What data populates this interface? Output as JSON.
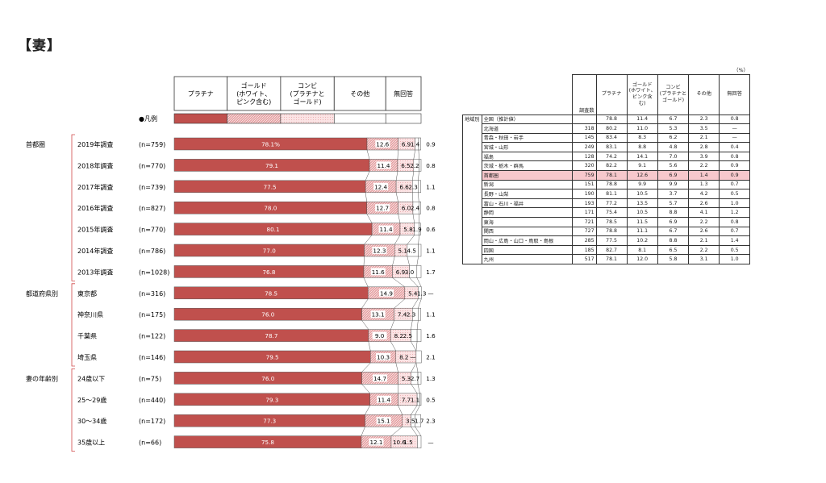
{
  "page": {
    "title": "【妻】"
  },
  "chart_data": {
    "type": "bar",
    "stacked": true,
    "orientation": "horizontal",
    "xlim": [
      0,
      100
    ],
    "legend": {
      "items": [
        "プラチナ",
        "ゴールド\n(ホワイト、\nピンク含む)",
        "コンビ\n(プラチナと\nゴールド)",
        "その他",
        "無回答"
      ],
      "marker_label": "●凡例"
    },
    "series_colors": [
      "#c0504d",
      "#e6a3a5",
      "#fbe3e4",
      "#ffffff",
      "#ffffff"
    ],
    "groups": [
      {
        "label": "首都圏",
        "start": 0,
        "end": 6
      },
      {
        "label": "都道府県別",
        "start": 7,
        "end": 10
      },
      {
        "label": "妻の年齢別",
        "start": 11,
        "end": 14
      }
    ],
    "rows": [
      {
        "label": "2019年調査",
        "n": "(n=759)",
        "values": [
          78.1,
          12.6,
          6.9,
          1.4,
          0.9
        ],
        "labels": [
          "78.1%",
          "12.6",
          "6.9",
          "1.4",
          "0.9"
        ]
      },
      {
        "label": "2018年調査",
        "n": "(n=770)",
        "values": [
          79.1,
          11.4,
          6.5,
          2.2,
          0.8
        ],
        "labels": [
          "79.1",
          "11.4",
          "6.5",
          "2.2",
          "0.8"
        ]
      },
      {
        "label": "2017年調査",
        "n": "(n=739)",
        "values": [
          77.5,
          12.4,
          6.6,
          2.3,
          1.1
        ],
        "labels": [
          "77.5",
          "12.4",
          "6.6",
          "2.3",
          "1.1"
        ]
      },
      {
        "label": "2016年調査",
        "n": "(n=827)",
        "values": [
          78.0,
          12.7,
          6.0,
          2.4,
          0.8
        ],
        "labels": [
          "78.0",
          "12.7",
          "6.0",
          "2.4",
          "0.8"
        ]
      },
      {
        "label": "2015年調査",
        "n": "(n=770)",
        "values": [
          80.1,
          11.4,
          5.8,
          1.9,
          0.6
        ],
        "labels": [
          "80.1",
          "11.4",
          "5.8",
          "1.9",
          "0.6"
        ]
      },
      {
        "label": "2014年調査",
        "n": "(n=786)",
        "values": [
          77.0,
          12.3,
          5.1,
          4.5,
          1.1
        ],
        "labels": [
          "77.0",
          "12.3",
          "5.1",
          "4.5",
          "1.1"
        ]
      },
      {
        "label": "2013年調査",
        "n": "(n=1028)",
        "values": [
          76.8,
          11.6,
          6.9,
          3.0,
          1.7
        ],
        "labels": [
          "76.8",
          "11.6",
          "6.9",
          "3.0",
          "1.7"
        ]
      },
      {
        "label": "東京都",
        "n": "(n=316)",
        "values": [
          78.5,
          14.9,
          5.4,
          1.3,
          0.0
        ],
        "labels": [
          "78.5",
          "14.9",
          "5.4",
          "1.3",
          "—"
        ]
      },
      {
        "label": "神奈川県",
        "n": "(n=175)",
        "values": [
          76.0,
          13.1,
          7.4,
          2.3,
          1.1
        ],
        "labels": [
          "76.0",
          "13.1",
          "7.4",
          "2.3",
          "1.1"
        ]
      },
      {
        "label": "千葉県",
        "n": "(n=122)",
        "values": [
          78.7,
          9.0,
          8.2,
          2.5,
          1.6
        ],
        "labels": [
          "78.7",
          "9.0",
          "8.2",
          "2.5",
          "1.6"
        ]
      },
      {
        "label": "埼玉県",
        "n": "(n=146)",
        "values": [
          79.5,
          10.3,
          8.2,
          0.0,
          2.1
        ],
        "labels": [
          "79.5",
          "10.3",
          "8.2",
          "—",
          "2.1"
        ]
      },
      {
        "label": "24歳以下",
        "n": "(n=75)",
        "values": [
          76.0,
          14.7,
          5.3,
          2.7,
          1.3
        ],
        "labels": [
          "76.0",
          "14.7",
          "5.3",
          "2.7",
          "1.3"
        ]
      },
      {
        "label": "25～29歳",
        "n": "(n=440)",
        "values": [
          79.3,
          11.4,
          7.7,
          1.1,
          0.5
        ],
        "labels": [
          "79.3",
          "11.4",
          "7.7",
          "1.1",
          "0.5"
        ]
      },
      {
        "label": "30～34歳",
        "n": "(n=172)",
        "values": [
          77.3,
          15.1,
          3.5,
          1.7,
          2.3
        ],
        "labels": [
          "77.3",
          "15.1",
          "3.5",
          "1.7",
          "2.3"
        ]
      },
      {
        "label": "35歳以上",
        "n": "(n=66)",
        "values": [
          75.8,
          12.1,
          10.6,
          1.5,
          0.0
        ],
        "labels": [
          "75.8",
          "12.1",
          "10.6",
          "1.5",
          "—"
        ]
      }
    ]
  },
  "region_table": {
    "unit": "（%）",
    "group_label": "地域別",
    "count_header": "調査数",
    "headers": [
      "プラチナ",
      "ゴールド\n(ホワイト、\nピンク含\nむ)",
      "コンビ\n(プラチナと\nゴールド)",
      "その他",
      "無回答"
    ],
    "rows": [
      {
        "region": "全国（推計値）",
        "count": "",
        "values": [
          "78.8",
          "11.4",
          "6.7",
          "2.3",
          "0.8"
        ]
      },
      {
        "region": "北海道",
        "count": "318",
        "values": [
          "80.2",
          "11.0",
          "5.3",
          "3.5",
          "—"
        ]
      },
      {
        "region": "青森・秋田・岩手",
        "count": "145",
        "values": [
          "83.4",
          "8.3",
          "6.2",
          "2.1",
          "—"
        ]
      },
      {
        "region": "宮城・山形",
        "count": "249",
        "values": [
          "83.1",
          "8.8",
          "4.8",
          "2.8",
          "0.4"
        ]
      },
      {
        "region": "福島",
        "count": "128",
        "values": [
          "74.2",
          "14.1",
          "7.0",
          "3.9",
          "0.8"
        ]
      },
      {
        "region": "茨城・栃木・群馬",
        "count": "320",
        "values": [
          "82.2",
          "9.1",
          "5.6",
          "2.2",
          "0.9"
        ]
      },
      {
        "region": "首都圏",
        "count": "759",
        "values": [
          "78.1",
          "12.6",
          "6.9",
          "1.4",
          "0.9"
        ],
        "highlight": true
      },
      {
        "region": "新潟",
        "count": "151",
        "values": [
          "78.8",
          "9.9",
          "9.9",
          "1.3",
          "0.7"
        ]
      },
      {
        "region": "長野・山梨",
        "count": "190",
        "values": [
          "81.1",
          "10.5",
          "3.7",
          "4.2",
          "0.5"
        ]
      },
      {
        "region": "富山・石川・福井",
        "count": "193",
        "values": [
          "77.2",
          "13.5",
          "5.7",
          "2.6",
          "1.0"
        ]
      },
      {
        "region": "静岡",
        "count": "171",
        "values": [
          "75.4",
          "10.5",
          "8.8",
          "4.1",
          "1.2"
        ]
      },
      {
        "region": "東海",
        "count": "721",
        "values": [
          "78.5",
          "11.5",
          "6.9",
          "2.2",
          "0.8"
        ]
      },
      {
        "region": "関西",
        "count": "727",
        "values": [
          "78.8",
          "11.1",
          "6.7",
          "2.6",
          "0.7"
        ]
      },
      {
        "region": "岡山・広島・山口・鳥取・島根",
        "count": "285",
        "values": [
          "77.5",
          "10.2",
          "8.8",
          "2.1",
          "1.4"
        ]
      },
      {
        "region": "四国",
        "count": "185",
        "values": [
          "82.7",
          "8.1",
          "6.5",
          "2.2",
          "0.5"
        ]
      },
      {
        "region": "九州",
        "count": "517",
        "values": [
          "78.1",
          "12.0",
          "5.8",
          "3.1",
          "1.0"
        ]
      }
    ]
  }
}
